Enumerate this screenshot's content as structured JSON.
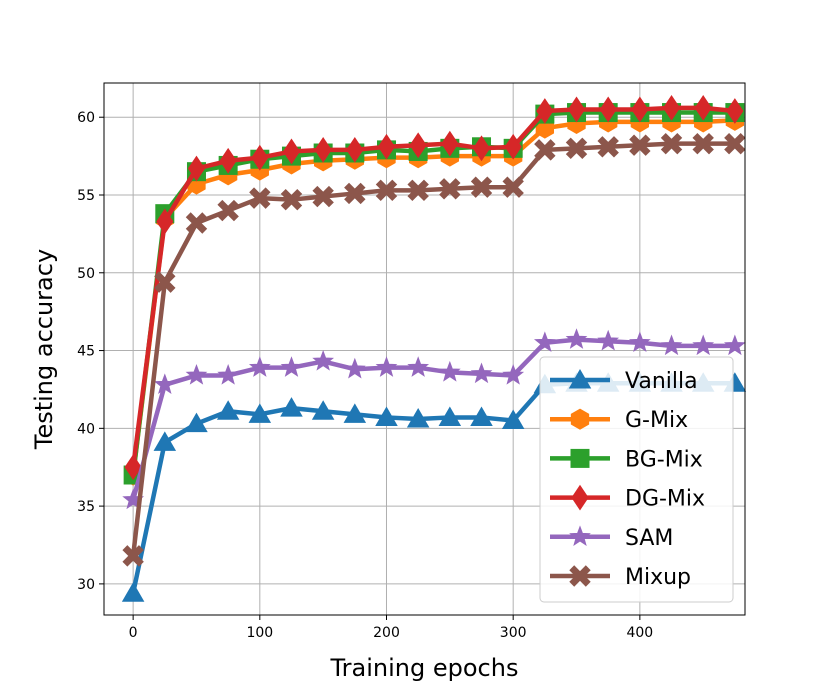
{
  "chart_data": {
    "type": "line",
    "title": "",
    "xlabel": "Training epochs",
    "ylabel": "Testing accuracy",
    "xlim": [
      -23,
      483
    ],
    "ylim": [
      28,
      62.2
    ],
    "xticks": [
      0,
      100,
      200,
      300,
      400
    ],
    "yticks": [
      30,
      35,
      40,
      45,
      50,
      55,
      60
    ],
    "grid": true,
    "legend_position": "lower-right",
    "x": [
      0,
      25,
      50,
      75,
      100,
      125,
      150,
      175,
      200,
      225,
      250,
      275,
      300,
      325,
      350,
      375,
      400,
      425,
      450,
      475
    ],
    "series": [
      {
        "name": "Vanilla",
        "color": "#1f77b4",
        "marker": "triangle",
        "values": [
          29.4,
          39.1,
          40.3,
          41.1,
          40.9,
          41.3,
          41.1,
          40.9,
          40.7,
          40.6,
          40.7,
          40.7,
          40.5,
          42.8,
          42.9,
          42.9,
          42.9,
          42.9,
          42.9,
          42.9
        ]
      },
      {
        "name": "G-Mix",
        "color": "#ff7f0e",
        "marker": "hexagon",
        "values": [
          37.0,
          53.5,
          55.7,
          56.3,
          56.6,
          57.0,
          57.2,
          57.3,
          57.4,
          57.4,
          57.5,
          57.5,
          57.5,
          59.3,
          59.6,
          59.7,
          59.7,
          59.7,
          59.7,
          59.8
        ]
      },
      {
        "name": "BG-Mix",
        "color": "#2ca02c",
        "marker": "square",
        "values": [
          37.0,
          53.8,
          56.5,
          56.9,
          57.3,
          57.5,
          57.7,
          57.7,
          57.9,
          57.8,
          58.0,
          58.1,
          58.0,
          60.2,
          60.3,
          60.3,
          60.3,
          60.3,
          60.3,
          60.3
        ]
      },
      {
        "name": "DG-Mix",
        "color": "#d62728",
        "marker": "diamond",
        "values": [
          37.5,
          53.3,
          56.7,
          57.2,
          57.4,
          57.8,
          57.9,
          57.9,
          58.1,
          58.2,
          58.3,
          58.0,
          58.1,
          60.4,
          60.5,
          60.5,
          60.5,
          60.6,
          60.6,
          60.4
        ]
      },
      {
        "name": "SAM",
        "color": "#9467bd",
        "marker": "star",
        "values": [
          35.4,
          42.8,
          43.4,
          43.4,
          43.9,
          43.9,
          44.3,
          43.8,
          43.9,
          43.9,
          43.6,
          43.5,
          43.4,
          45.5,
          45.7,
          45.6,
          45.5,
          45.3,
          45.3,
          45.3
        ]
      },
      {
        "name": "Mixup",
        "color": "#8c564b",
        "marker": "x",
        "values": [
          31.8,
          49.4,
          53.2,
          54.0,
          54.8,
          54.7,
          54.9,
          55.1,
          55.3,
          55.3,
          55.4,
          55.5,
          55.5,
          57.9,
          58.0,
          58.1,
          58.2,
          58.3,
          58.3,
          58.3
        ]
      }
    ]
  }
}
